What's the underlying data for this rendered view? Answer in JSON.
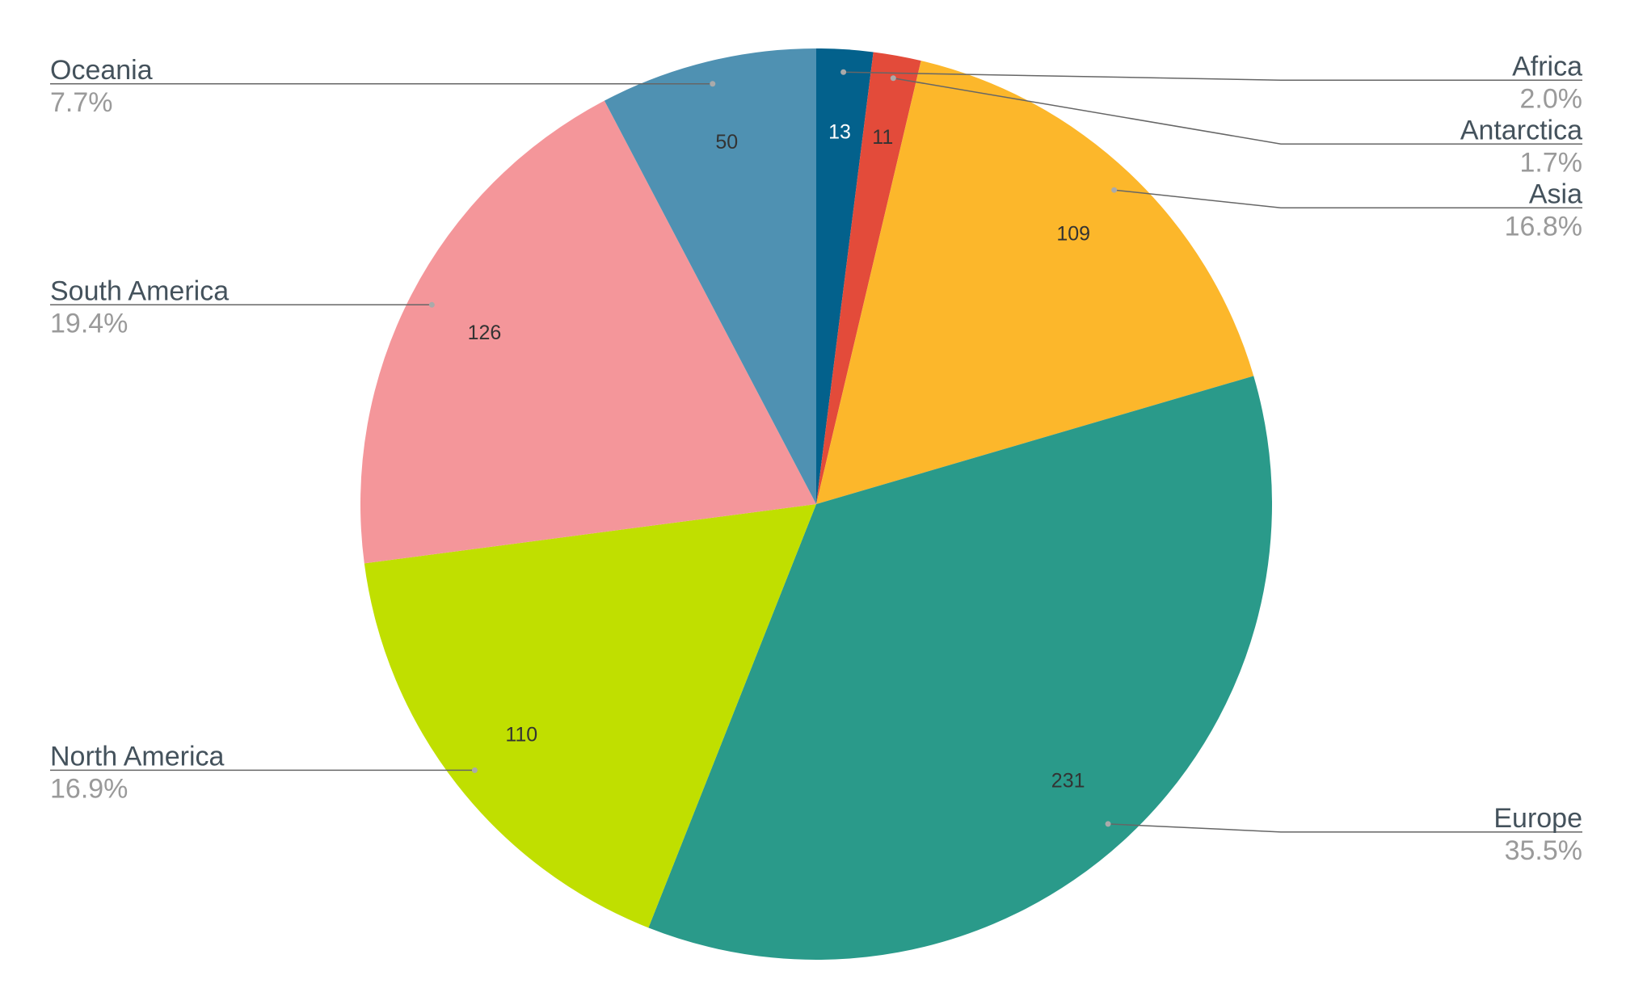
{
  "chart_data": {
    "type": "pie",
    "categories": [
      "Africa",
      "Antarctica",
      "Asia",
      "Europe",
      "North America",
      "South America",
      "Oceania"
    ],
    "values": [
      13,
      11,
      109,
      231,
      110,
      126,
      50
    ],
    "percent_labels": [
      "2.0%",
      "1.7%",
      "16.8%",
      "35.5%",
      "16.9%",
      "19.4%",
      "7.7%"
    ],
    "colors": [
      "#03618c",
      "#e34b3a",
      "#fcb72b",
      "#2a9a8a",
      "#c0df00",
      "#f4969a",
      "#4f91b2"
    ]
  }
}
